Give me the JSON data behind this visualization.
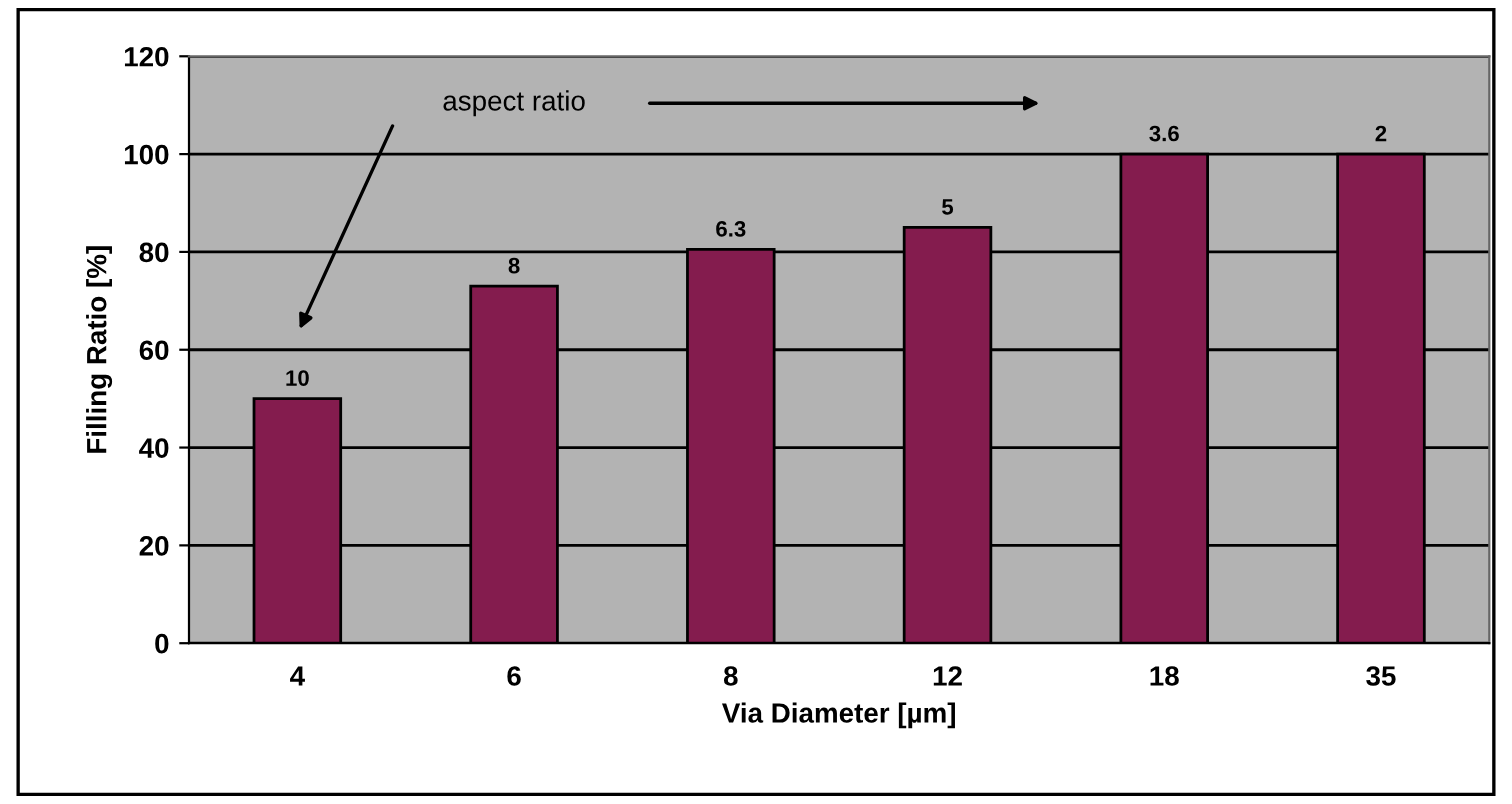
{
  "chart_data": {
    "type": "bar",
    "xlabel": "Via Diameter [µm]",
    "ylabel": "Filling Ratio [%]",
    "categories": [
      "4",
      "6",
      "8",
      "12",
      "18",
      "35"
    ],
    "values": [
      50,
      73,
      80.5,
      85,
      100,
      100
    ],
    "color": "#841c4e",
    "ylim": [
      0,
      120
    ],
    "yticks": [
      0,
      20,
      40,
      60,
      80,
      100,
      120
    ],
    "grid": "y",
    "annotations": [
      "aspect ratio",
      {
        "text": "10",
        "x": "4",
        "y": 50
      },
      {
        "text": "8",
        "x": "6",
        "y": 73
      },
      {
        "text": "6.3",
        "x": "8",
        "y": 80.5
      },
      {
        "text": "5",
        "x": "12",
        "y": 85
      },
      {
        "text": "3.6",
        "x": "18",
        "y": 100
      },
      {
        "text": "2",
        "x": "35",
        "y": 100
      }
    ]
  }
}
